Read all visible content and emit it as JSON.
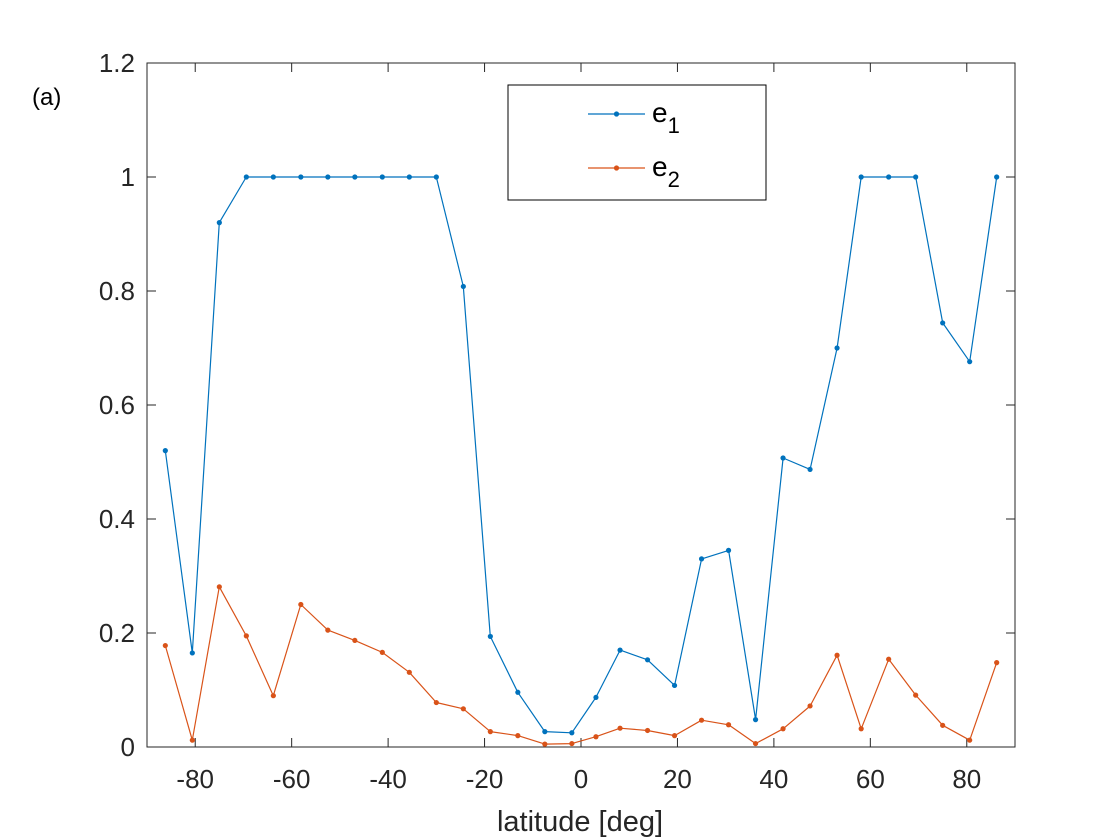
{
  "panel_label": "(a)",
  "chart_data": {
    "type": "line",
    "xlabel": "latitude [deg]",
    "ylabel": "",
    "xlim": [
      -90,
      90
    ],
    "ylim": [
      0,
      1.2
    ],
    "xticks": [
      -80,
      -60,
      -40,
      -20,
      0,
      20,
      40,
      60,
      80
    ],
    "yticks": [
      0,
      0.2,
      0.4,
      0.6,
      0.8,
      1,
      1.2
    ],
    "grid": false,
    "legend_position": "top-center",
    "x": [
      -86.2,
      -80.6,
      -75.0,
      -69.4,
      -63.8,
      -58.1,
      -52.5,
      -46.9,
      -41.2,
      -35.6,
      -30.0,
      -24.4,
      -18.8,
      -13.1,
      -7.5,
      -1.9,
      3.1,
      8.1,
      13.8,
      19.4,
      25.0,
      30.6,
      36.2,
      41.9,
      47.5,
      53.1,
      58.1,
      63.8,
      69.4,
      75.0,
      80.6,
      86.2
    ],
    "series": [
      {
        "name": "e",
        "subscript": "1",
        "color": "#0072BD",
        "values": [
          0.52,
          0.165,
          0.92,
          1.0,
          1.0,
          1.0,
          1.0,
          1.0,
          1.0,
          1.0,
          1.0,
          0.808,
          0.194,
          0.096,
          0.027,
          0.025,
          0.087,
          0.17,
          0.153,
          0.108,
          0.33,
          0.345,
          0.048,
          0.507,
          0.487,
          0.7,
          1.0,
          1.0,
          1.0,
          0.744,
          0.676,
          1.0
        ]
      },
      {
        "name": "e",
        "subscript": "2",
        "color": "#D95319",
        "values": [
          0.178,
          0.012,
          0.281,
          0.195,
          0.09,
          0.25,
          0.205,
          0.187,
          0.166,
          0.131,
          0.078,
          0.067,
          0.027,
          0.02,
          0.005,
          0.006,
          0.018,
          0.033,
          0.029,
          0.02,
          0.047,
          0.039,
          0.006,
          0.032,
          0.072,
          0.161,
          0.032,
          0.154,
          0.091,
          0.038,
          0.012,
          0.148
        ]
      }
    ]
  }
}
